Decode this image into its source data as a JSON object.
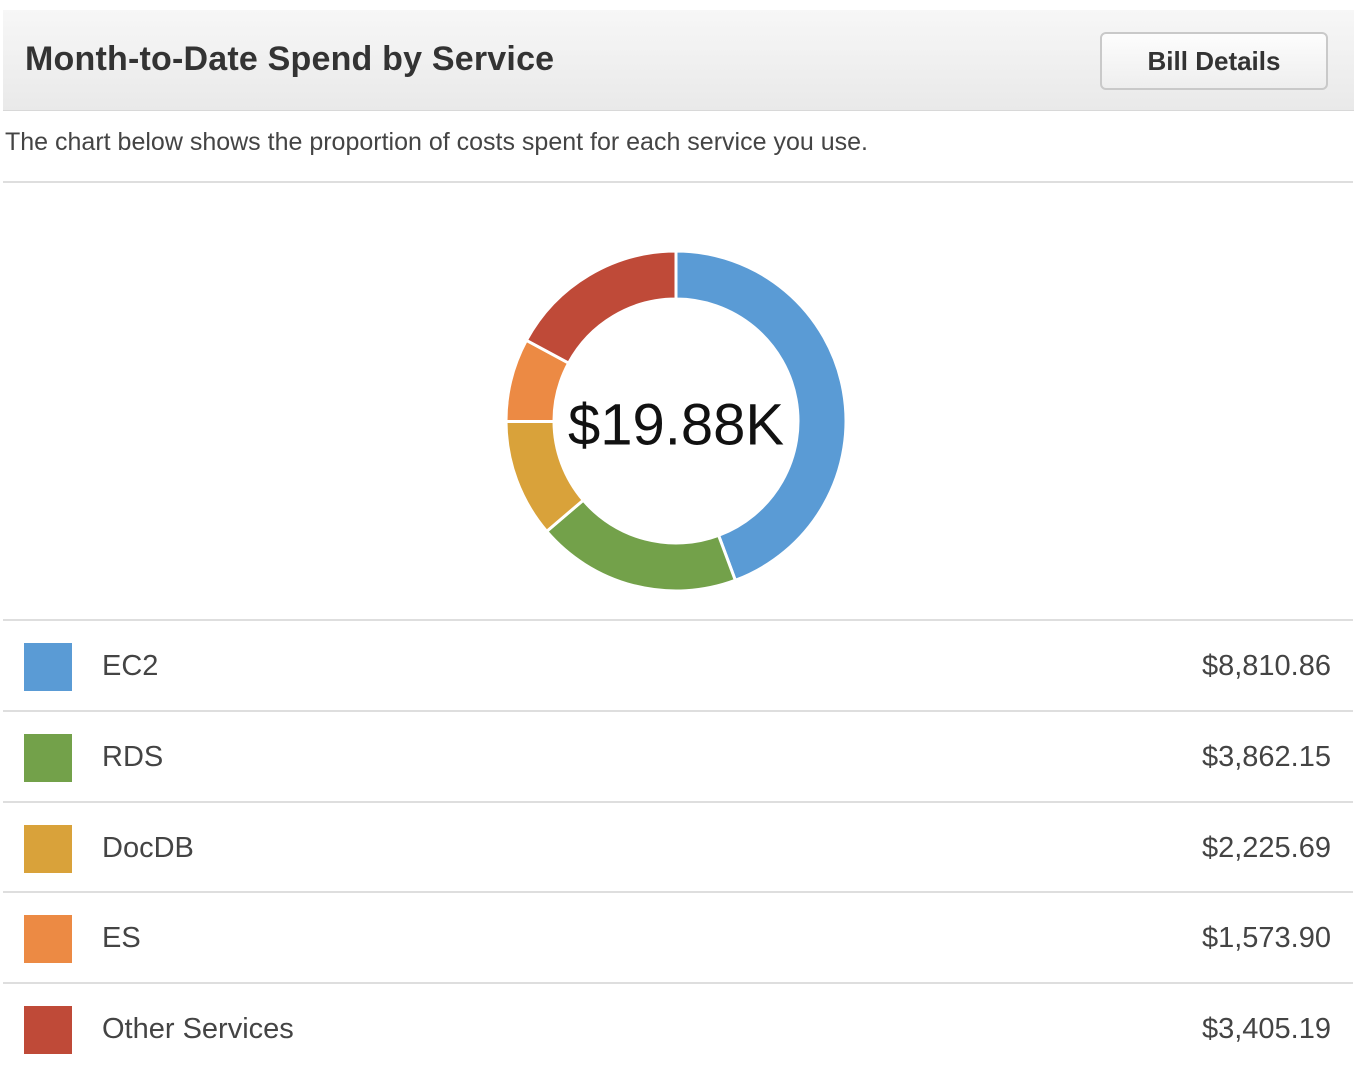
{
  "header": {
    "title": "Month-to-Date Spend by Service",
    "button_label": "Bill Details"
  },
  "description": "The chart below shows the proportion of costs spent for each service you use.",
  "chart_data": {
    "type": "pie",
    "center_label": "$19.88K",
    "categories": [
      "EC2",
      "RDS",
      "DocDB",
      "ES",
      "Other Services"
    ],
    "values": [
      8810.86,
      3862.15,
      2225.69,
      1573.9,
      3405.19
    ],
    "colors": [
      "#5a9bd5",
      "#73a14a",
      "#d9a23a",
      "#ec8a44",
      "#bf4a38"
    ]
  },
  "legend": [
    {
      "label": "EC2",
      "value": "$8,810.86",
      "color": "#5a9bd5"
    },
    {
      "label": "RDS",
      "value": "$3,862.15",
      "color": "#73a14a"
    },
    {
      "label": "DocDB",
      "value": "$2,225.69",
      "color": "#d9a23a"
    },
    {
      "label": "ES",
      "value": "$1,573.90",
      "color": "#ec8a44"
    },
    {
      "label": "Other Services",
      "value": "$3,405.19",
      "color": "#bf4a38"
    }
  ]
}
